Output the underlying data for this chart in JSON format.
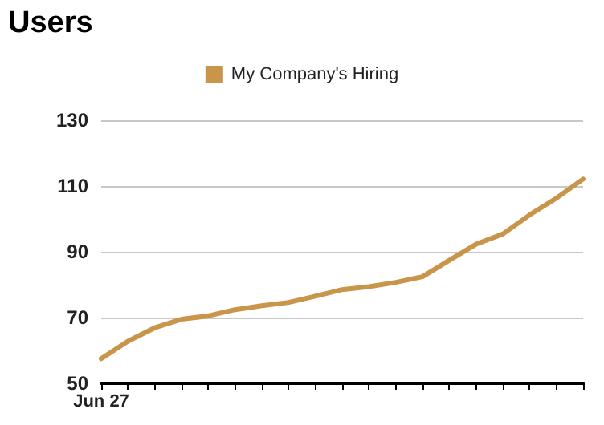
{
  "chart_data": {
    "type": "line",
    "title": "Users",
    "categories": [
      "Jun 27",
      null,
      null,
      null,
      null,
      null,
      null,
      null,
      null,
      null,
      null,
      null,
      null,
      null,
      null,
      null,
      null,
      null,
      null
    ],
    "series": [
      {
        "name": "My Company's Hiring",
        "color": "#c8954a",
        "values": [
          57.5,
          62.8,
          66.9,
          69.5,
          70.5,
          72.4,
          73.6,
          74.6,
          76.5,
          78.5,
          79.4,
          80.7,
          82.4,
          87.4,
          92.3,
          95.4,
          101.2,
          106.3,
          112.1
        ]
      }
    ],
    "ylim": [
      50,
      130
    ],
    "yticks": [
      50,
      70,
      90,
      110,
      130
    ],
    "grid": "y",
    "legend": "top",
    "marker": "none",
    "line_style": "solid"
  }
}
